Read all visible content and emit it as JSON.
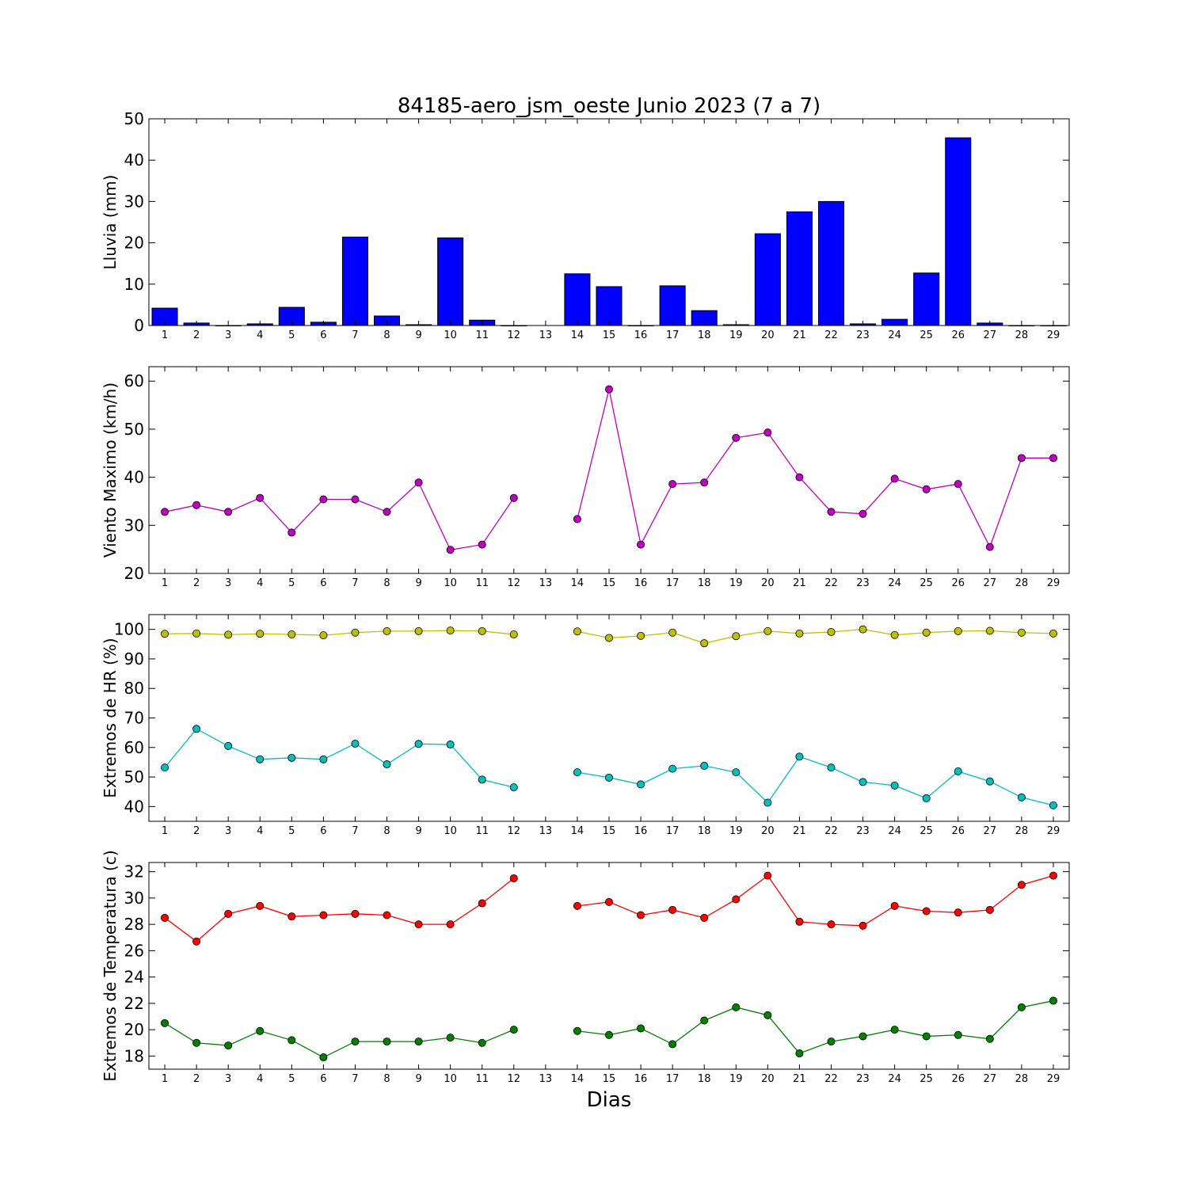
{
  "figure": {
    "title": "84185-aero_jsm_oeste Junio 2023  (7 a 7)",
    "xlabel": "Dias"
  },
  "chart_data": [
    {
      "type": "bar",
      "ylabel": "Lluvia (mm)",
      "ylim": [
        0,
        50
      ],
      "yticks": [
        0,
        10,
        20,
        30,
        40,
        50
      ],
      "x": [
        1,
        2,
        3,
        4,
        5,
        6,
        7,
        8,
        9,
        10,
        11,
        12,
        13,
        14,
        15,
        16,
        17,
        18,
        19,
        20,
        21,
        22,
        23,
        24,
        25,
        26,
        27,
        28,
        29
      ],
      "series": [
        {
          "color": "#0000ff",
          "values": [
            4.2,
            0.6,
            0,
            0.4,
            4.4,
            0.8,
            21.4,
            2.3,
            0.2,
            21.2,
            1.3,
            0,
            null,
            12.5,
            9.4,
            0,
            9.6,
            3.6,
            0.2,
            22.2,
            27.5,
            30.0,
            0.4,
            1.5,
            12.7,
            45.4,
            0.6,
            0,
            0
          ]
        }
      ]
    },
    {
      "type": "line",
      "ylabel": "Viento Maximo (km/h)",
      "ylim": [
        20,
        63
      ],
      "yticks": [
        20,
        30,
        40,
        50,
        60
      ],
      "x": [
        1,
        2,
        3,
        4,
        5,
        6,
        7,
        8,
        9,
        10,
        11,
        12,
        13,
        14,
        15,
        16,
        17,
        18,
        19,
        20,
        21,
        22,
        23,
        24,
        25,
        26,
        27,
        28,
        29
      ],
      "series": [
        {
          "color": "#bf00bf",
          "values": [
            32.8,
            34.2,
            32.8,
            35.7,
            28.5,
            35.4,
            35.4,
            32.8,
            38.9,
            24.9,
            26.0,
            35.7,
            null,
            31.3,
            58.3,
            26.0,
            38.6,
            38.9,
            48.2,
            49.3,
            40.0,
            32.8,
            32.4,
            39.7,
            37.5,
            38.6,
            25.5,
            44.0,
            44.0
          ]
        }
      ]
    },
    {
      "type": "line",
      "ylabel": "Extremos de HR (%)",
      "ylim": [
        35,
        105
      ],
      "yticks": [
        40,
        50,
        60,
        70,
        80,
        90,
        100
      ],
      "x": [
        1,
        2,
        3,
        4,
        5,
        6,
        7,
        8,
        9,
        10,
        11,
        12,
        13,
        14,
        15,
        16,
        17,
        18,
        19,
        20,
        21,
        22,
        23,
        24,
        25,
        26,
        27,
        28,
        29
      ],
      "series": [
        {
          "color": "#bfbf00",
          "values": [
            98.5,
            98.6,
            98.2,
            98.5,
            98.3,
            98.0,
            98.9,
            99.4,
            99.4,
            99.6,
            99.4,
            98.3,
            null,
            99.3,
            97.1,
            97.8,
            98.9,
            95.3,
            97.7,
            99.4,
            98.6,
            99.1,
            100.0,
            98.1,
            98.9,
            99.4,
            99.5,
            98.9,
            98.6
          ]
        },
        {
          "color": "#00bfbf",
          "values": [
            53.2,
            66.3,
            60.5,
            56.0,
            56.5,
            56.0,
            61.3,
            54.3,
            61.2,
            61.0,
            49.1,
            46.5,
            null,
            51.6,
            49.8,
            47.5,
            52.8,
            53.8,
            51.6,
            41.3,
            56.9,
            53.2,
            48.3,
            47.1,
            42.8,
            51.9,
            48.5,
            43.1,
            40.4
          ]
        }
      ]
    },
    {
      "type": "line",
      "ylabel": "Extremos de Temperatura (c)",
      "ylim": [
        17,
        32.7
      ],
      "yticks": [
        18,
        20,
        22,
        24,
        26,
        28,
        30,
        32
      ],
      "x": [
        1,
        2,
        3,
        4,
        5,
        6,
        7,
        8,
        9,
        10,
        11,
        12,
        13,
        14,
        15,
        16,
        17,
        18,
        19,
        20,
        21,
        22,
        23,
        24,
        25,
        26,
        27,
        28,
        29
      ],
      "series": [
        {
          "color": "#ff0000",
          "values": [
            28.5,
            26.7,
            28.8,
            29.4,
            28.6,
            28.7,
            28.8,
            28.7,
            28.0,
            28.0,
            29.6,
            31.5,
            null,
            29.4,
            29.7,
            28.7,
            29.1,
            28.5,
            29.9,
            31.7,
            28.2,
            28.0,
            27.9,
            29.4,
            29.0,
            28.9,
            29.1,
            31.0,
            31.7
          ]
        },
        {
          "color": "#007f00",
          "values": [
            20.5,
            19.0,
            18.8,
            19.9,
            19.2,
            17.9,
            19.1,
            19.1,
            19.1,
            19.4,
            19.0,
            20.0,
            null,
            19.9,
            19.6,
            20.1,
            18.9,
            20.7,
            21.7,
            21.1,
            18.2,
            19.1,
            19.5,
            20.0,
            19.5,
            19.6,
            19.3,
            21.7,
            22.2
          ]
        }
      ]
    }
  ]
}
